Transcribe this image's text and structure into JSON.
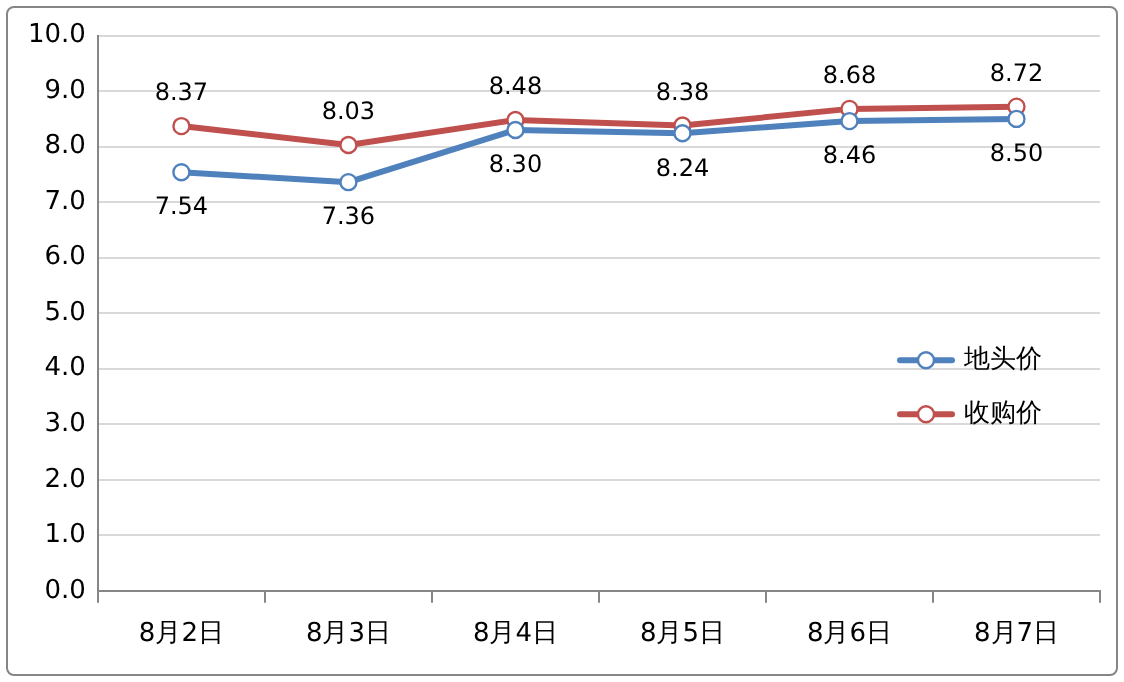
{
  "chart_data": {
    "type": "line",
    "categories": [
      "8月2日",
      "8月3日",
      "8月4日",
      "8月5日",
      "8月6日",
      "8月7日"
    ],
    "series": [
      {
        "name": "地头价",
        "color": "#4f81bd",
        "values": [
          7.54,
          7.36,
          8.3,
          8.24,
          8.46,
          8.5
        ],
        "value_labels": [
          "7.54",
          "7.36",
          "8.30",
          "8.24",
          "8.46",
          "8.50"
        ]
      },
      {
        "name": "收购价",
        "color": "#c0504d",
        "values": [
          8.37,
          8.03,
          8.48,
          8.38,
          8.68,
          8.72
        ],
        "value_labels": [
          "8.37",
          "8.03",
          "8.48",
          "8.38",
          "8.68",
          "8.72"
        ]
      }
    ],
    "ylim": [
      0,
      10
    ],
    "yticks": [
      {
        "value": 0,
        "label": "0.0"
      },
      {
        "value": 1,
        "label": "1.0"
      },
      {
        "value": 2,
        "label": "2.0"
      },
      {
        "value": 3,
        "label": "3.0"
      },
      {
        "value": 4,
        "label": "4.0"
      },
      {
        "value": 5,
        "label": "5.0"
      },
      {
        "value": 6,
        "label": "6.0"
      },
      {
        "value": 7,
        "label": "7.0"
      },
      {
        "value": 8,
        "label": "8.0"
      },
      {
        "value": 9,
        "label": "9.0"
      },
      {
        "value": 10,
        "label": "10.0"
      }
    ],
    "grid": "y",
    "legend": "right",
    "marker": "circle",
    "line_style": "solid"
  }
}
